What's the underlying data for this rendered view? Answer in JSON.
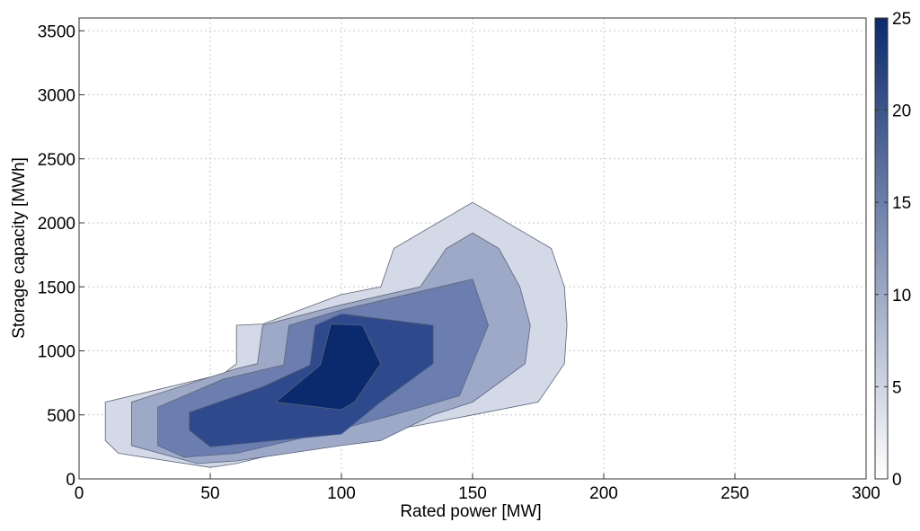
{
  "chart_data": {
    "type": "contour",
    "title": "",
    "xlabel": "Rated power [MW]",
    "ylabel": "Storage capacity [MWh]",
    "xlim": [
      0,
      300
    ],
    "ylim": [
      0,
      3600
    ],
    "xticks": [
      0,
      50,
      100,
      150,
      200,
      250,
      300
    ],
    "yticks": [
      0,
      500,
      1000,
      1500,
      2000,
      2500,
      3000,
      3500
    ],
    "grid": true,
    "colorbar": {
      "range": [
        0,
        25
      ],
      "ticks": [
        0,
        5,
        10,
        15,
        20,
        25
      ],
      "colors": [
        "#ffffff",
        "#0b2a6e"
      ],
      "placement": "right"
    },
    "levels": [
      {
        "value": 5,
        "color": "#d3d9e6",
        "polygon": [
          [
            10,
            600
          ],
          [
            55,
            820
          ],
          [
            60,
            900
          ],
          [
            60,
            1200
          ],
          [
            70,
            1210
          ],
          [
            100,
            1440
          ],
          [
            115,
            1500
          ],
          [
            120,
            1800
          ],
          [
            150,
            2160
          ],
          [
            180,
            1800
          ],
          [
            185,
            1500
          ],
          [
            186,
            1200
          ],
          [
            185,
            900
          ],
          [
            175,
            600
          ],
          [
            150,
            500
          ],
          [
            130,
            420
          ],
          [
            100,
            320
          ],
          [
            60,
            120
          ],
          [
            50,
            90
          ],
          [
            15,
            200
          ],
          [
            10,
            300
          ],
          [
            10,
            600
          ]
        ]
      },
      {
        "value": 10,
        "color": "#9ea9c7",
        "polygon": [
          [
            20,
            600
          ],
          [
            60,
            860
          ],
          [
            68,
            900
          ],
          [
            70,
            1200
          ],
          [
            98,
            1350
          ],
          [
            130,
            1500
          ],
          [
            140,
            1800
          ],
          [
            150,
            1920
          ],
          [
            160,
            1800
          ],
          [
            168,
            1500
          ],
          [
            172,
            1200
          ],
          [
            170,
            900
          ],
          [
            150,
            600
          ],
          [
            135,
            500
          ],
          [
            115,
            300
          ],
          [
            100,
            260
          ],
          [
            60,
            140
          ],
          [
            45,
            120
          ],
          [
            20,
            260
          ],
          [
            20,
            600
          ]
        ]
      },
      {
        "value": 15,
        "color": "#6b7eaf",
        "polygon": [
          [
            30,
            560
          ],
          [
            55,
            780
          ],
          [
            78,
            890
          ],
          [
            80,
            1200
          ],
          [
            100,
            1320
          ],
          [
            150,
            1560
          ],
          [
            156,
            1200
          ],
          [
            150,
            900
          ],
          [
            145,
            650
          ],
          [
            120,
            500
          ],
          [
            100,
            390
          ],
          [
            60,
            200
          ],
          [
            40,
            170
          ],
          [
            30,
            260
          ],
          [
            30,
            560
          ]
        ]
      },
      {
        "value": 20,
        "color": "#2e4a8c",
        "polygon": [
          [
            42,
            520
          ],
          [
            70,
            720
          ],
          [
            88,
            890
          ],
          [
            90,
            1200
          ],
          [
            100,
            1290
          ],
          [
            135,
            1200
          ],
          [
            135,
            900
          ],
          [
            115,
            600
          ],
          [
            100,
            350
          ],
          [
            50,
            250
          ],
          [
            42,
            380
          ],
          [
            42,
            520
          ]
        ]
      },
      {
        "value": 25,
        "color": "#0b2a6e",
        "polygon": [
          [
            75,
            600
          ],
          [
            92,
            890
          ],
          [
            96,
            1210
          ],
          [
            108,
            1200
          ],
          [
            115,
            900
          ],
          [
            105,
            600
          ],
          [
            100,
            540
          ],
          [
            75,
            600
          ]
        ]
      }
    ]
  }
}
